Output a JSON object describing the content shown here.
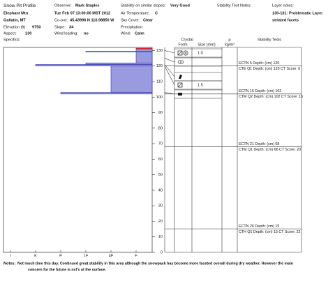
{
  "header": {
    "title": "Snow Pit Profile",
    "site": "Elephant Mtn",
    "region": "Gallatin, MT",
    "elevation": {
      "label": "Elevation (ft):",
      "value": 9750
    },
    "aspect": {
      "label": "Aspect:",
      "value": 130
    },
    "specifics": {
      "label": "Specifics:"
    }
  },
  "observation": {
    "observer": {
      "label": "Observer:",
      "value": "Mark Staples"
    },
    "datetime": "Tue Feb 07 13:00:00 MST 2012",
    "coord": {
      "label": "Co-ord:",
      "value": "45.43996 N 110.98850 W"
    },
    "slope": {
      "label": "Slope:",
      "value": 34
    },
    "wind_loading": {
      "label": "Wind loading:",
      "value": "no"
    }
  },
  "conditions": {
    "stability": {
      "label": "Stability on similar slopes:",
      "value": "Very Good"
    },
    "air_temp": {
      "label": "Air Temperature:",
      "value": "C"
    },
    "sky": {
      "label": "Sky Cover:",
      "value": "Clear"
    },
    "precip": {
      "label": "Precipitation:"
    },
    "wind": {
      "label": "Wind:",
      "value": "Calm"
    }
  },
  "stability_notes": {
    "label": "Stability Test Notes:"
  },
  "layer_notes": {
    "label": "Layer notes:",
    "lines": [
      "130-131: Problematic Layer",
      "striated facets"
    ]
  },
  "profile": {
    "hardness": [
      "I",
      "K",
      "P",
      "1F",
      "4F",
      "F"
    ],
    "depth_lim": [
      0,
      132
    ],
    "depth_ticks": [
      0,
      10,
      20,
      30,
      40,
      50,
      60,
      70,
      80,
      90,
      100,
      110,
      120,
      130
    ],
    "layers": [
      {
        "top": 131.5,
        "bottom": 131,
        "hardness": "F",
        "color": "#e02020"
      },
      {
        "top": 131,
        "bottom": 122,
        "hardness": "F",
        "color": "#9a9ae0"
      },
      {
        "top": 129.5,
        "bottom": 129,
        "hardness": "1F",
        "color": "#9a9ae0"
      },
      {
        "top": 122,
        "bottom": 121,
        "hardness": "1F",
        "color": "#9a9ae0"
      },
      {
        "top": 121,
        "bottom": 120,
        "hardness": "K",
        "color": "#9a9ae0"
      },
      {
        "top": 120,
        "bottom": 103,
        "hardness": "4F",
        "color": "#9a9ae0"
      },
      {
        "top": 103,
        "bottom": 102,
        "hardness": "P",
        "color": "#9a9ae0"
      }
    ],
    "columns": {
      "crystal": "Crystal",
      "form": "Form",
      "size": "Size (mm)",
      "density": "ρ",
      "density_unit": "kg/m³",
      "tests": "Stability Tests"
    },
    "grains": [
      {
        "depth": 130,
        "size": "1.0"
      },
      {
        "depth": 125
      },
      {
        "depth": 121
      },
      {
        "depth": 120,
        "size": "1.5"
      },
      {
        "depth": 103
      }
    ],
    "tests": [
      {
        "depth": 120,
        "lines": [
          "ECTN 5   Depth: (cm) 120",
          "CTE Q1 Depth: (cm) 120 CT Score: 6"
        ]
      },
      {
        "depth": 102,
        "lines": [
          "ECTN 16   Depth: (cm) 102",
          "CTM Q2 Depth: (cm) 102 CT Score: 15"
        ]
      },
      {
        "depth": 68,
        "lines": [
          "ECTN 21   Depth: (cm) 68",
          "CTM Q1 Depth: (cm) 68 CT Score: 20"
        ]
      },
      {
        "depth": 15,
        "lines": [
          "ECTN 26   Depth: (cm) 15",
          "CTH Q1 Depth: (cm) 15 CT Score: 22"
        ]
      }
    ]
  },
  "notes": {
    "label": "Notes:",
    "lines": [
      "Not much time this day.  Continued great stability in this area although the snowpack has become more faceted overall during dry weather.  However the main",
      "concern for the future is nsf's at the surface."
    ]
  }
}
